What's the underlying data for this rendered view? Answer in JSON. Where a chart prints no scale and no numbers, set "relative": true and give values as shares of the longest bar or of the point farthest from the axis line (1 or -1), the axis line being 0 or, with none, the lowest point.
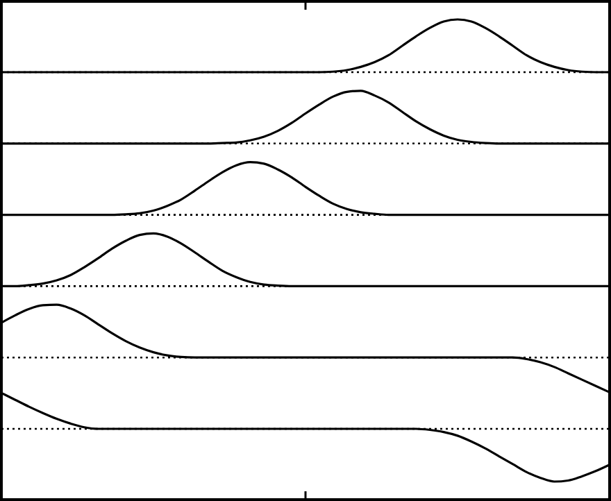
{
  "chart_data": [
    {
      "type": "line",
      "relative": true,
      "color": "#000000",
      "categories": [
        null,
        null,
        null,
        null,
        null,
        null,
        null,
        null,
        null,
        null,
        null,
        null,
        null,
        null,
        null,
        null,
        null,
        null,
        null,
        null,
        null,
        null,
        null,
        null,
        null,
        null,
        null,
        null,
        null,
        null,
        null,
        null,
        null,
        null,
        null,
        null,
        null,
        null,
        null,
        null,
        null,
        null,
        null,
        null,
        null
      ],
      "ref_lines": [
        {
          "axis": "y",
          "value": 0,
          "line_style": "dotted"
        }
      ],
      "values": [
        0,
        0,
        0,
        0,
        0,
        0,
        0,
        0,
        0,
        0,
        0,
        0,
        0,
        0,
        0,
        0,
        0,
        0,
        0,
        0,
        0,
        0,
        0,
        0,
        0.01,
        0.04,
        0.1,
        0.19,
        0.32,
        0.5,
        0.68,
        0.84,
        0.96,
        1,
        0.96,
        0.84,
        0.68,
        0.5,
        0.32,
        0.19,
        0.1,
        0.04,
        0.01,
        0,
        0
      ]
    },
    {
      "type": "line",
      "relative": true,
      "color": "#000000",
      "categories": [
        null,
        null,
        null,
        null,
        null,
        null,
        null,
        null,
        null,
        null,
        null,
        null,
        null,
        null,
        null,
        null,
        null,
        null,
        null,
        null,
        null,
        null,
        null,
        null,
        null,
        null,
        null,
        null,
        null,
        null,
        null,
        null,
        null,
        null,
        null,
        null,
        null,
        null,
        null,
        null,
        null,
        null,
        null,
        null,
        null
      ],
      "ref_lines": [
        {
          "axis": "y",
          "value": 0,
          "line_style": "dotted"
        }
      ],
      "values": [
        0,
        0,
        0,
        0,
        0,
        0,
        0,
        0,
        0,
        0,
        0,
        0,
        0,
        0,
        0,
        0,
        0.01,
        0.02,
        0.06,
        0.13,
        0.24,
        0.39,
        0.57,
        0.74,
        0.89,
        0.98,
        1,
        0.91,
        0.78,
        0.6,
        0.42,
        0.27,
        0.15,
        0.07,
        0.03,
        0.01,
        0,
        0,
        0,
        0,
        0,
        0,
        0,
        0,
        0
      ]
    },
    {
      "type": "line",
      "relative": true,
      "color": "#000000",
      "categories": [
        null,
        null,
        null,
        null,
        null,
        null,
        null,
        null,
        null,
        null,
        null,
        null,
        null,
        null,
        null,
        null,
        null,
        null,
        null,
        null,
        null,
        null,
        null,
        null,
        null,
        null,
        null,
        null,
        null,
        null,
        null,
        null,
        null,
        null,
        null,
        null,
        null,
        null,
        null,
        null,
        null,
        null,
        null,
        null,
        null
      ],
      "ref_lines": [
        {
          "axis": "y",
          "value": 0,
          "line_style": "dotted"
        }
      ],
      "values": [
        0,
        0,
        0,
        0,
        0,
        0,
        0,
        0,
        0,
        0.01,
        0.03,
        0.08,
        0.17,
        0.29,
        0.46,
        0.64,
        0.81,
        0.94,
        1,
        0.97,
        0.86,
        0.71,
        0.53,
        0.36,
        0.21,
        0.11,
        0.05,
        0.02,
        0,
        0,
        0,
        0,
        0,
        0,
        0,
        0,
        0,
        0,
        0,
        0,
        0,
        0,
        0,
        0,
        0
      ]
    },
    {
      "type": "line",
      "relative": true,
      "color": "#000000",
      "categories": [
        null,
        null,
        null,
        null,
        null,
        null,
        null,
        null,
        null,
        null,
        null,
        null,
        null,
        null,
        null,
        null,
        null,
        null,
        null,
        null,
        null,
        null,
        null,
        null,
        null,
        null,
        null,
        null,
        null,
        null,
        null,
        null,
        null,
        null,
        null,
        null,
        null,
        null,
        null,
        null,
        null,
        null,
        null,
        null,
        null
      ],
      "ref_lines": [
        {
          "axis": "y",
          "value": 0,
          "line_style": "dotted"
        }
      ],
      "values": [
        0,
        0,
        0.02,
        0.05,
        0.11,
        0.21,
        0.36,
        0.53,
        0.71,
        0.86,
        0.97,
        1,
        0.94,
        0.81,
        0.64,
        0.46,
        0.29,
        0.17,
        0.08,
        0.03,
        0.01,
        0,
        0,
        0,
        0,
        0,
        0,
        0,
        0,
        0,
        0,
        0,
        0,
        0,
        0,
        0,
        0,
        0,
        0,
        0,
        0,
        0,
        0,
        0,
        0
      ]
    },
    {
      "type": "line",
      "relative": true,
      "color": "#000000",
      "categories": [
        null,
        null,
        null,
        null,
        null,
        null,
        null,
        null,
        null,
        null,
        null,
        null,
        null,
        null,
        null,
        null,
        null,
        null,
        null,
        null,
        null,
        null,
        null,
        null,
        null,
        null,
        null,
        null,
        null,
        null,
        null,
        null,
        null,
        null,
        null,
        null,
        null,
        null,
        null,
        null,
        null,
        null,
        null,
        null,
        null
      ],
      "ref_lines": [
        {
          "axis": "y",
          "value": 0,
          "line_style": "dotted"
        }
      ],
      "values": [
        0.66,
        0.8,
        0.92,
        0.99,
        1,
        0.93,
        0.8,
        0.63,
        0.46,
        0.31,
        0.19,
        0.1,
        0.04,
        0.01,
        0,
        0,
        0,
        0,
        0,
        0,
        0,
        0,
        0,
        0,
        0,
        0,
        0,
        0,
        0,
        0,
        0,
        0,
        0,
        0,
        0,
        0,
        0,
        0,
        -0.03,
        -0.09,
        -0.18,
        -0.3,
        -0.42,
        -0.54,
        -0.66
      ]
    },
    {
      "type": "line",
      "relative": true,
      "color": "#000000",
      "categories": [
        null,
        null,
        null,
        null,
        null,
        null,
        null,
        null,
        null,
        null,
        null,
        null,
        null,
        null,
        null,
        null,
        null,
        null,
        null,
        null,
        null,
        null,
        null,
        null,
        null,
        null,
        null,
        null,
        null,
        null,
        null,
        null,
        null,
        null,
        null,
        null,
        null,
        null,
        null,
        null,
        null,
        null,
        null,
        null,
        null
      ],
      "ref_lines": [
        {
          "axis": "y",
          "value": 0,
          "line_style": "dotted"
        }
      ],
      "values": [
        0.68,
        0.55,
        0.42,
        0.3,
        0.19,
        0.1,
        0.03,
        0,
        0,
        0,
        0,
        0,
        0,
        0,
        0,
        0,
        0,
        0,
        0,
        0,
        0,
        0,
        0,
        0,
        0,
        0,
        0,
        0,
        0,
        0,
        0,
        -0.02,
        -0.06,
        -0.13,
        -0.24,
        -0.37,
        -0.52,
        -0.67,
        -0.82,
        -0.93,
        -1,
        -0.98,
        -0.9,
        -0.8,
        -0.68
      ]
    }
  ]
}
